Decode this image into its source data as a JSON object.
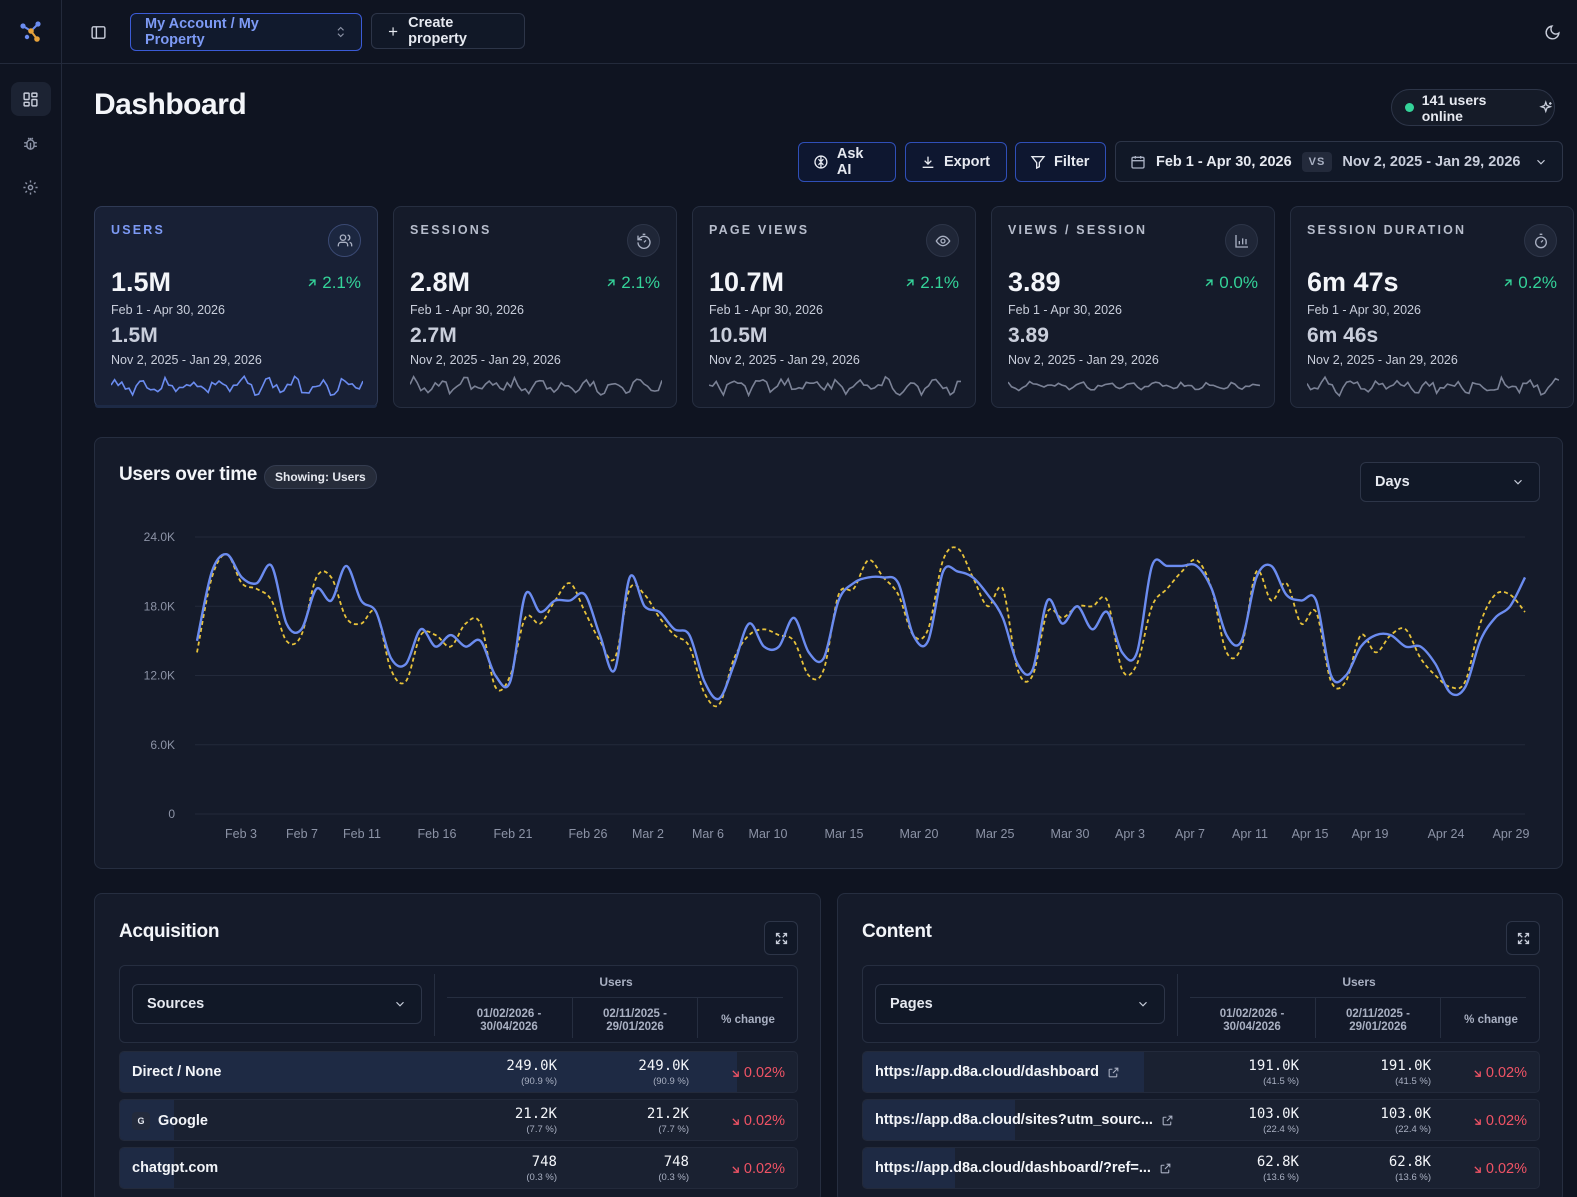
{
  "topbar": {
    "property_selector": "My Account / My Property",
    "create_property": "Create property"
  },
  "page": {
    "title": "Dashboard",
    "online": "141 users online"
  },
  "actions": {
    "ask_ai": "Ask AI",
    "export": "Export",
    "filter": "Filter",
    "date_range": "Feb 1 - Apr 30, 2026",
    "vs": "VS",
    "compare_range": "Nov 2, 2025 - Jan 29, 2026"
  },
  "kpis": [
    {
      "label": "USERS",
      "value": "1.5M",
      "change": "2.1%",
      "period": "Feb 1 - Apr 30, 2026",
      "prev_value": "1.5M",
      "prev_period": "Nov 2, 2025 - Jan 29, 2026",
      "icon": "users-icon"
    },
    {
      "label": "SESSIONS",
      "value": "2.8M",
      "change": "2.1%",
      "period": "Feb 1 - Apr 30, 2026",
      "prev_value": "2.7M",
      "prev_period": "Nov 2, 2025 - Jan 29, 2026",
      "icon": "timer-reset-icon"
    },
    {
      "label": "PAGE VIEWS",
      "value": "10.7M",
      "change": "2.1%",
      "period": "Feb 1 - Apr 30, 2026",
      "prev_value": "10.5M",
      "prev_period": "Nov 2, 2025 - Jan 29, 2026",
      "icon": "eye-icon"
    },
    {
      "label": "VIEWS / SESSION",
      "value": "3.89",
      "change": "0.0%",
      "period": "Feb 1 - Apr 30, 2026",
      "prev_value": "3.89",
      "prev_period": "Nov 2, 2025 - Jan 29, 2026",
      "icon": "bar-chart-icon"
    },
    {
      "label": "SESSION DURATION",
      "value": "6m 47s",
      "change": "0.2%",
      "period": "Feb 1 - Apr 30, 2026",
      "prev_value": "6m 46s",
      "prev_period": "Nov 2, 2025 - Jan 29, 2026",
      "icon": "stopwatch-icon"
    }
  ],
  "users_chart": {
    "title": "Users over time",
    "badge": "Showing: Users",
    "granularity": "Days"
  },
  "chart_data": {
    "type": "line",
    "ylim": [
      0,
      24000
    ],
    "y_ticks": [
      "0",
      "6.0K",
      "12.0K",
      "18.0K",
      "24.0K"
    ],
    "x_ticks": [
      "Feb 3",
      "Feb 7",
      "Feb 11",
      "Feb 16",
      "Feb 21",
      "Feb 26",
      "Mar 2",
      "Mar 6",
      "Mar 10",
      "Mar 15",
      "Mar 20",
      "Mar 25",
      "Mar 30",
      "Apr 3",
      "Apr 7",
      "Apr 11",
      "Apr 15",
      "Apr 19",
      "Apr 24",
      "Apr 29"
    ],
    "colors": {
      "current": "#6b8cf0",
      "previous": "#e7c23a"
    },
    "series": [
      {
        "values": [
          15000,
          21000,
          22500,
          20500,
          20000,
          21500,
          16500,
          16000,
          19500,
          18500,
          21500,
          18500,
          17500,
          13500,
          13000,
          16000,
          14500,
          15500,
          14500,
          15000,
          12000,
          11500,
          19000,
          17500,
          18500,
          18500,
          19000,
          15500,
          12500,
          20500,
          18000,
          17500,
          16000,
          15500,
          11500,
          10000,
          13000,
          16500,
          14500,
          14500,
          17000,
          14000,
          13500,
          18500,
          20000,
          20500,
          20500,
          20000,
          15500,
          15000,
          21000,
          21000,
          20500,
          19000,
          17000,
          13000,
          12500,
          18500,
          16500,
          18000,
          16000,
          17500,
          14000,
          14000,
          21500,
          21500,
          21500,
          21500,
          19500,
          15500,
          15000,
          20500,
          21500,
          19000,
          18500,
          18500,
          12000,
          12000,
          14500,
          15500,
          15500,
          14500,
          14500,
          13000,
          10500,
          11000,
          15000,
          17000,
          18000,
          20500
        ]
      },
      {
        "values": [
          14000,
          20500,
          22500,
          20000,
          19500,
          18500,
          15000,
          15500,
          20500,
          20500,
          17000,
          16500,
          17500,
          12500,
          11500,
          15500,
          15500,
          14500,
          16500,
          16500,
          11000,
          12000,
          17000,
          16500,
          18500,
          20000,
          17500,
          15000,
          13500,
          19500,
          19000,
          17000,
          15500,
          14500,
          10500,
          9500,
          13500,
          15500,
          16000,
          15500,
          15000,
          12000,
          12500,
          19000,
          19500,
          22000,
          20500,
          19000,
          15500,
          16000,
          22000,
          23000,
          20500,
          18000,
          19500,
          12500,
          12000,
          17500,
          17000,
          18000,
          18000,
          18500,
          12500,
          13000,
          18000,
          19500,
          21000,
          22000,
          19500,
          14000,
          14500,
          21000,
          18500,
          20000,
          16500,
          17500,
          11500,
          11500,
          15500,
          14000,
          15500,
          16000,
          13500,
          12000,
          11000,
          11500,
          16500,
          19000,
          19000,
          17500
        ]
      }
    ]
  },
  "acquisition": {
    "title": "Acquisition",
    "dimension": "Sources",
    "metric": "Users",
    "col_current": "01/02/2026 - 30/04/2026",
    "col_previous": "02/11/2025 - 29/01/2026",
    "col_change": "% change",
    "rows": [
      {
        "name": "Direct / None",
        "current": "249.0K",
        "current_share": "(90.9 %)",
        "previous": "249.0K",
        "previous_share": "(90.9 %)",
        "change": "0.02%",
        "share": 0.909
      },
      {
        "name": "Google",
        "logo": "G",
        "current": "21.2K",
        "current_share": "(7.7 %)",
        "previous": "21.2K",
        "previous_share": "(7.7 %)",
        "change": "0.02%",
        "share": 0.077
      },
      {
        "name": "chatgpt.com",
        "current": "748",
        "current_share": "(0.3 %)",
        "previous": "748",
        "previous_share": "(0.3 %)",
        "change": "0.02%",
        "share": 0.003
      }
    ]
  },
  "content": {
    "title": "Content",
    "dimension": "Pages",
    "metric": "Users",
    "col_current": "01/02/2026 - 30/04/2026",
    "col_previous": "02/11/2025 - 29/01/2026",
    "col_change": "% change",
    "rows": [
      {
        "name": "https://app.d8a.cloud/dashboard",
        "current": "191.0K",
        "current_share": "(41.5 %)",
        "previous": "191.0K",
        "previous_share": "(41.5 %)",
        "change": "0.02%",
        "share": 0.415
      },
      {
        "name": "https://app.d8a.cloud/sites?utm_sourc...",
        "current": "103.0K",
        "current_share": "(22.4 %)",
        "previous": "103.0K",
        "previous_share": "(22.4 %)",
        "change": "0.02%",
        "share": 0.224
      },
      {
        "name": "https://app.d8a.cloud/dashboard/?ref=...",
        "current": "62.8K",
        "current_share": "(13.6 %)",
        "previous": "62.8K",
        "previous_share": "(13.6 %)",
        "change": "0.02%",
        "share": 0.136
      }
    ]
  }
}
